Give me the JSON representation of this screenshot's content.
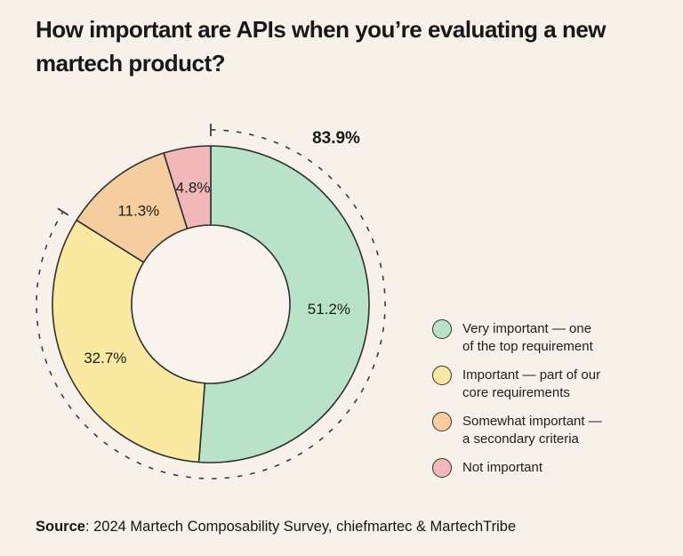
{
  "page": {
    "background_color": "#f7f1ea",
    "title": {
      "line1": "How important are APIs when you’re evaluating a new",
      "line2": "martech product?"
    },
    "source": {
      "label": "Source",
      "text": ": 2024 Martech Composability Survey, chiefmartec & MartechTribe"
    }
  },
  "chart_data": {
    "type": "pie",
    "subtype": "donut",
    "title": "How important are APIs when you’re evaluating a new martech product?",
    "categories": [
      "Very important — one of the top requirement",
      "Important — part of our core requirements",
      "Somewhat important — a secondary criteria",
      "Not important"
    ],
    "values": [
      51.2,
      32.7,
      11.3,
      4.8
    ],
    "slices": [
      {
        "id": "very-important",
        "label": "Very important — one of the top requirement",
        "value": 51.2,
        "value_label": "51.2%",
        "color": "#b9e3c9"
      },
      {
        "id": "important",
        "label": "Important — part of our core requirements",
        "value": 32.7,
        "value_label": "32.7%",
        "color": "#fae9a1"
      },
      {
        "id": "somewhat-important",
        "label": "Somewhat important — a secondary criteria",
        "value": 11.3,
        "value_label": "11.3%",
        "color": "#f6cd9e"
      },
      {
        "id": "not-important",
        "label": "Not important",
        "value": 4.8,
        "value_label": "4.8%",
        "color": "#f1b7b9"
      }
    ],
    "callout": {
      "label": "83.9%",
      "span_percent": 83.9
    },
    "start_angle_deg": 0,
    "direction": "clockwise",
    "stroke_color": "#2f2f2f",
    "hole_color": "#f8f3ec",
    "legend_position": "right"
  },
  "legend": {
    "items": [
      {
        "lines": [
          "Very important — one",
          "of the top requirement"
        ]
      },
      {
        "lines": [
          "Important — part of our",
          "core requirements"
        ]
      },
      {
        "lines": [
          "Somewhat important —",
          "a secondary criteria"
        ]
      },
      {
        "lines": [
          "Not important"
        ]
      }
    ]
  }
}
